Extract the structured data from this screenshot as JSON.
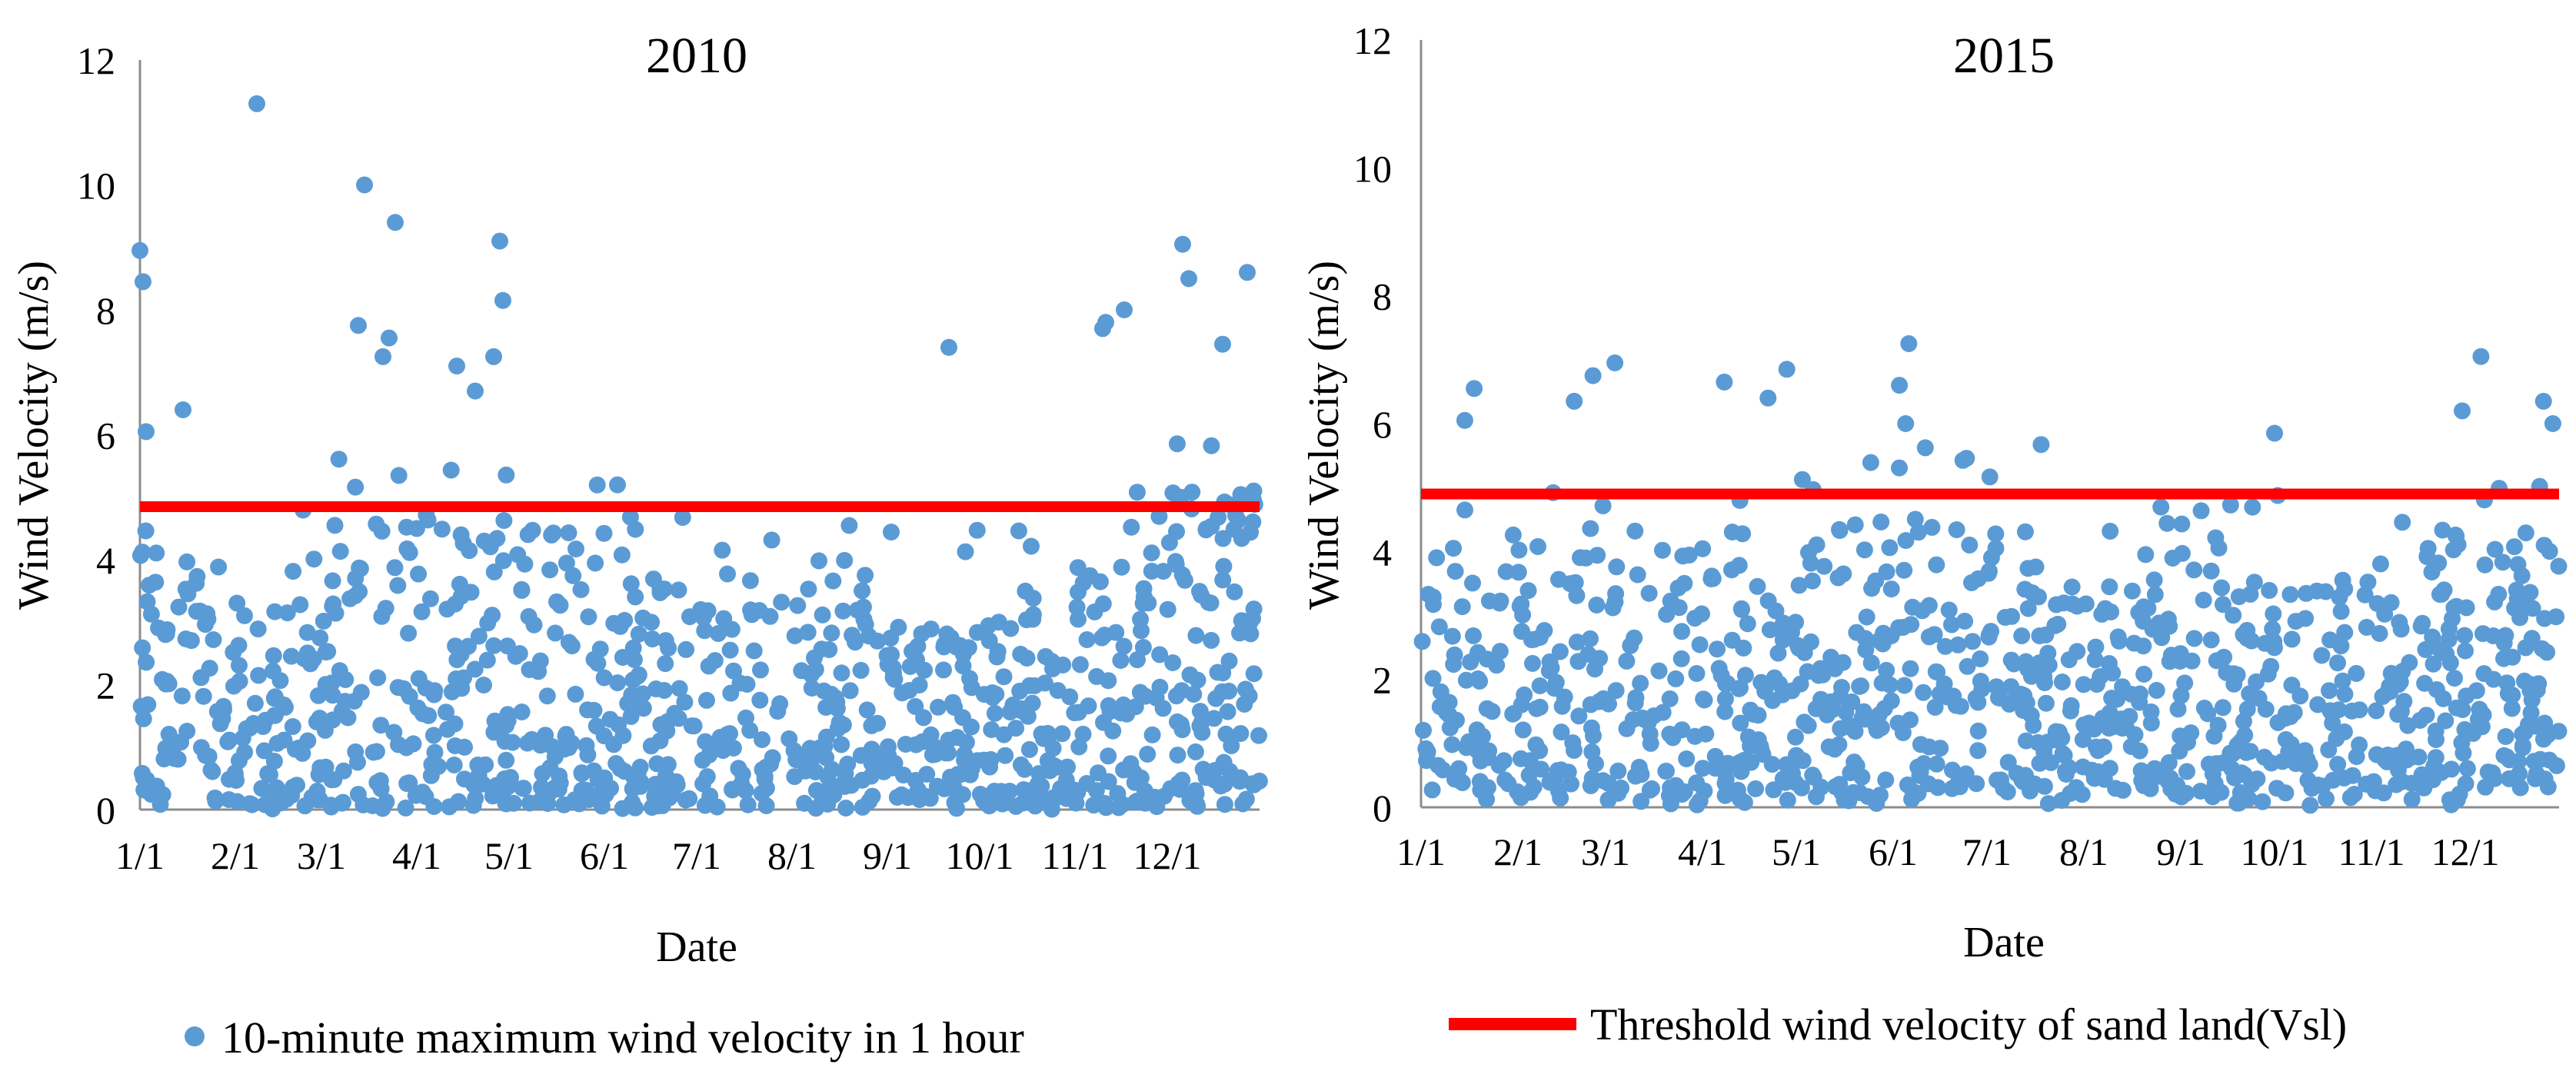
{
  "colors": {
    "point": "#5b9bd5",
    "threshold": "#ff0000",
    "axis": "#8c8c8c",
    "text": "#000000"
  },
  "legend": {
    "series_label": "10-minute maximum wind velocity in 1 hour",
    "threshold_label": "Threshold wind velocity of sand land(Vsl)"
  },
  "chart_data": [
    {
      "type": "scatter",
      "title": "2010",
      "xlabel": "Date",
      "ylabel": "Wind Velocity (m/s)",
      "ylim": [
        0,
        12
      ],
      "yticks": [
        0,
        2,
        4,
        6,
        8,
        10,
        12
      ],
      "xlim": [
        1,
        365
      ],
      "xtick_days": [
        1,
        32,
        60,
        91,
        121,
        152,
        182,
        213,
        244,
        274,
        305,
        335
      ],
      "xtick_labels": [
        "1/1",
        "2/1",
        "3/1",
        "4/1",
        "5/1",
        "6/1",
        "7/1",
        "8/1",
        "9/1",
        "10/1",
        "11/1",
        "12/1"
      ],
      "grid": false,
      "threshold": 4.85,
      "series_name": "10-minute maximum wind velocity in 1 hour",
      "data_note": "Daily-cycle scatter of hourly 10-minute maxima, approx. 1000 points; bulk 0.2–4 m/s, higher clusters in Mar–May and Nov–Dec",
      "outliers": [
        {
          "day": 1,
          "v": 8.95
        },
        {
          "day": 2,
          "v": 8.45
        },
        {
          "day": 3,
          "v": 6.05
        },
        {
          "day": 15,
          "v": 6.4
        },
        {
          "day": 39,
          "v": 11.3
        },
        {
          "day": 72,
          "v": 7.75
        },
        {
          "day": 74,
          "v": 10.0
        },
        {
          "day": 80,
          "v": 7.25
        },
        {
          "day": 82,
          "v": 7.55
        },
        {
          "day": 84,
          "v": 9.4
        },
        {
          "day": 104,
          "v": 7.1
        },
        {
          "day": 110,
          "v": 6.7
        },
        {
          "day": 116,
          "v": 7.25
        },
        {
          "day": 118,
          "v": 9.1
        },
        {
          "day": 119,
          "v": 8.15
        },
        {
          "day": 264,
          "v": 7.4
        },
        {
          "day": 314,
          "v": 7.7
        },
        {
          "day": 315,
          "v": 7.8
        },
        {
          "day": 321,
          "v": 8.0
        },
        {
          "day": 340,
          "v": 9.05
        },
        {
          "day": 342,
          "v": 8.5
        },
        {
          "day": 353,
          "v": 7.45
        },
        {
          "day": 361,
          "v": 8.6
        }
      ]
    },
    {
      "type": "scatter",
      "title": "2015",
      "xlabel": "Date",
      "ylabel": "Wind Velocity (m/s)",
      "ylim": [
        0,
        12
      ],
      "yticks": [
        0,
        2,
        4,
        6,
        8,
        10,
        12
      ],
      "xlim": [
        1,
        365
      ],
      "xtick_days": [
        1,
        32,
        60,
        91,
        121,
        152,
        182,
        213,
        244,
        274,
        305,
        335
      ],
      "xtick_labels": [
        "1/1",
        "2/1",
        "3/1",
        "4/1",
        "5/1",
        "6/1",
        "7/1",
        "8/1",
        "9/1",
        "10/1",
        "11/1",
        "12/1"
      ],
      "grid": false,
      "threshold": 4.9,
      "series_name": "10-minute maximum wind velocity in 1 hour",
      "data_note": "Daily-cycle scatter of hourly 10-minute maxima, approx. 1000 points; bulk 0.5–3.5 m/s, occasional peaks to ~7 m/s",
      "outliers": [
        {
          "day": 18,
          "v": 6.55
        },
        {
          "day": 15,
          "v": 6.05
        },
        {
          "day": 50,
          "v": 6.35
        },
        {
          "day": 56,
          "v": 6.75
        },
        {
          "day": 63,
          "v": 6.95
        },
        {
          "day": 98,
          "v": 6.65
        },
        {
          "day": 112,
          "v": 6.4
        },
        {
          "day": 118,
          "v": 6.85
        },
        {
          "day": 154,
          "v": 6.6
        },
        {
          "day": 157,
          "v": 7.25
        },
        {
          "day": 156,
          "v": 6.0
        },
        {
          "day": 274,
          "v": 5.85
        },
        {
          "day": 334,
          "v": 6.2
        },
        {
          "day": 340,
          "v": 7.05
        },
        {
          "day": 360,
          "v": 6.35
        },
        {
          "day": 363,
          "v": 6.0
        }
      ]
    }
  ]
}
